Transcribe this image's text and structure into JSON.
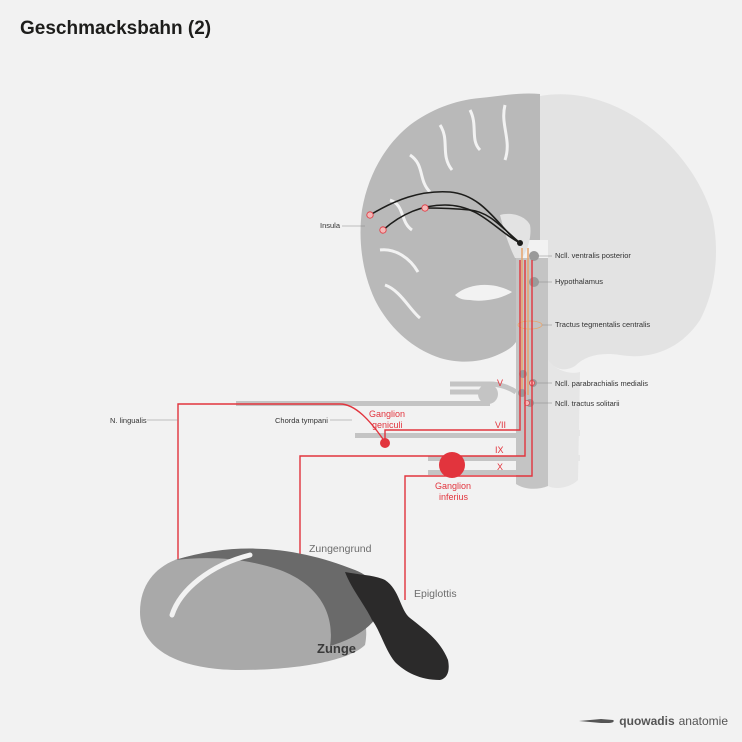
{
  "title": "Geschmacksbahn (2)",
  "labels": {
    "insula": "Insula",
    "ncll_ventralis_posterior": "Ncll. ventralis posterior",
    "hypothalamus": "Hypothalamus",
    "tractus_tegmentalis_centralis": "Tractus tegmentalis centralis",
    "ncll_parabrachialis_medialis": "Ncll. parabrachialis medialis",
    "ncll_tractus_solitarii": "Ncll. tractus solitarii",
    "n_lingualis": "N. lingualis",
    "chorda_tympani": "Chorda tympani",
    "ganglion_geniculi_1": "Ganglion",
    "ganglion_geniculi_2": "geniculi",
    "ganglion_inferius_1": "Ganglion",
    "ganglion_inferius_2": "inferius",
    "nerve_v": "V",
    "nerve_vii": "VII",
    "nerve_ix": "IX",
    "nerve_x": "X",
    "zungengrund": "Zungengrund",
    "epiglottis": "Epiglottis",
    "zunge": "Zunge"
  },
  "logo": {
    "brand": "quowadis",
    "suffix": "anatomie"
  },
  "colors": {
    "background": "#f2f2f2",
    "nerve_red": "#e2343d",
    "tract_orange": "#e8a46c",
    "brain_left": "#b9b9b9",
    "brain_right": "#e3e3e3",
    "tongue_light": "#a9a9a9",
    "tongue_dark": "#6a6a6a",
    "epiglottis": "#2b2a2a"
  }
}
